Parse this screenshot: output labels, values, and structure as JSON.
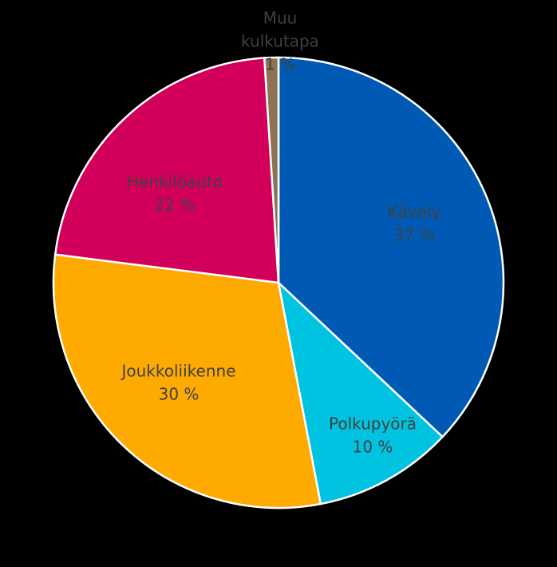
{
  "chart_data": {
    "type": "pie",
    "title": "",
    "slices": [
      {
        "label_lines": [
          "Kävely",
          "37 %"
        ],
        "value": 37,
        "color": "#005AB4"
      },
      {
        "label_lines": [
          "Polkupyörä",
          "10 %"
        ],
        "value": 10,
        "color": "#00C3E1"
      },
      {
        "label_lines": [
          "Joukkoliikenne",
          "30 %"
        ],
        "value": 30,
        "color": "#FFAA00"
      },
      {
        "label_lines": [
          "Henkilöauto",
          "22 %"
        ],
        "value": 22,
        "color": "#D2005A"
      },
      {
        "label_lines": [
          "Muu",
          "kulkutapa",
          "1 %"
        ],
        "value": 1,
        "color": "#8C7354"
      }
    ],
    "start_angle": "12 o'clock",
    "direction": "clockwise",
    "legend": "none"
  }
}
